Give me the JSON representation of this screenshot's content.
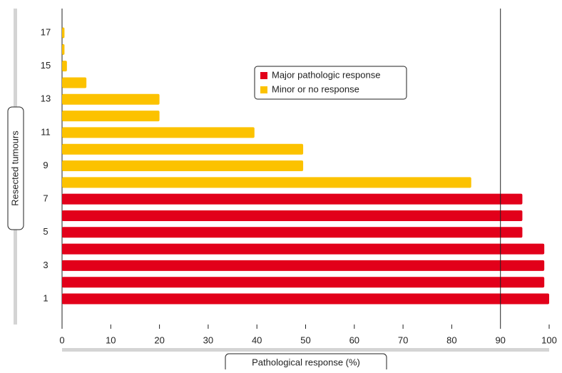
{
  "chart_data": {
    "type": "hbar",
    "x_label": "Pathological response (%)",
    "y_label": "Resected tumours",
    "categories": [
      "1",
      null,
      "3",
      null,
      "5",
      null,
      "7",
      null,
      "9",
      null,
      "11",
      null,
      "13",
      null,
      "15",
      null,
      "17"
    ],
    "series": [
      {
        "name": "Major pathologic response",
        "color": "#e2001a",
        "values": [
          100,
          99,
          99,
          99,
          94.5,
          94.5,
          94.5,
          null,
          null,
          null,
          null,
          null,
          null,
          null,
          null,
          null,
          null
        ]
      },
      {
        "name": "Minor or no response",
        "color": "#fcc200",
        "values": [
          null,
          null,
          null,
          null,
          null,
          null,
          null,
          84,
          49.5,
          49.5,
          39.5,
          20,
          20,
          5,
          1,
          0.5,
          0.5
        ]
      }
    ],
    "xlim": [
      0,
      100
    ],
    "xticks": [
      0,
      10,
      20,
      30,
      40,
      50,
      60,
      70,
      80,
      90,
      100
    ],
    "reference_line": 90
  }
}
